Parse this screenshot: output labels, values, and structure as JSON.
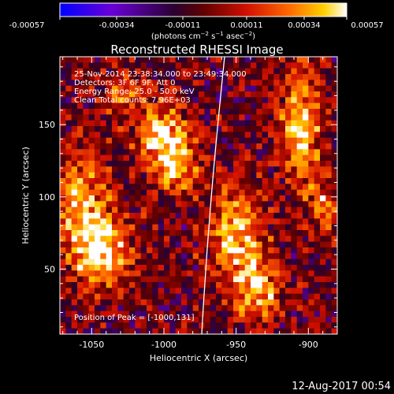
{
  "colorbar": {
    "ticks": [
      "-0.00057",
      "-0.00034",
      "-0.00011",
      "0.00011",
      "0.00034",
      "0.00057"
    ],
    "units_main": "(photons cm",
    "units_exp1": "−2",
    "units_s": " s",
    "units_exp2": "−1",
    "units_asec": " asec",
    "units_exp3": "−2",
    "units_close": ")"
  },
  "info": {
    "line1": "25-Nov-2014 23:38:34.000 to 23:49:34.000",
    "line2": "Detectors: 3F 6F 9F, Att 0",
    "line3": "Energy Range: 25.0 - 50.0 keV",
    "line4": "Clean    Total counts: 7.96E+03"
  },
  "peak_label": "Position of Peak = [-1000,131]",
  "footer_date": "12-Aug-2017 00:54",
  "chart_data": {
    "type": "heatmap",
    "title": "Reconstructed RHESSI Image",
    "xlabel": "Heliocentric X (arcsec)",
    "ylabel": "Heliocentric Y (arcsec)",
    "xlim": [
      -1072,
      -880
    ],
    "ylim": [
      5,
      197
    ],
    "xticks": [
      -1050,
      -1000,
      -950,
      -900
    ],
    "yticks": [
      50,
      100,
      150
    ],
    "xtick_labels": [
      "-1050",
      "-1000",
      "-950",
      "-900"
    ],
    "ytick_labels": [
      "50",
      "100",
      "150"
    ],
    "color_range": [
      -0.00057,
      0.00057
    ],
    "colormap": [
      "#0000ff",
      "#6a00d6",
      "#3a0030",
      "#b00000",
      "#ff5000",
      "#ffc000",
      "#ffffff"
    ],
    "limb_color": "#ffffff",
    "sources": [
      {
        "x": -1058,
        "y": 95,
        "sx": 14,
        "sy": 26,
        "amp": 0.00045
      },
      {
        "x": -1042,
        "y": 60,
        "sx": 14,
        "sy": 18,
        "amp": 0.0005
      },
      {
        "x": -1000,
        "y": 140,
        "sx": 13,
        "sy": 18,
        "amp": 0.00057
      },
      {
        "x": -990,
        "y": 120,
        "sx": 8,
        "sy": 10,
        "amp": 0.00035
      },
      {
        "x": -950,
        "y": 75,
        "sx": 14,
        "sy": 24,
        "amp": 0.0005
      },
      {
        "x": -935,
        "y": 35,
        "sx": 12,
        "sy": 16,
        "amp": 0.00042
      },
      {
        "x": -905,
        "y": 150,
        "sx": 10,
        "sy": 28,
        "amp": 0.00052
      },
      {
        "x": -890,
        "y": 95,
        "sx": 8,
        "sy": 16,
        "amp": 0.0003
      },
      {
        "x": -1028,
        "y": 172,
        "sx": 10,
        "sy": 12,
        "amp": 0.00028
      }
    ],
    "noise_amplitude": 0.0002
  }
}
